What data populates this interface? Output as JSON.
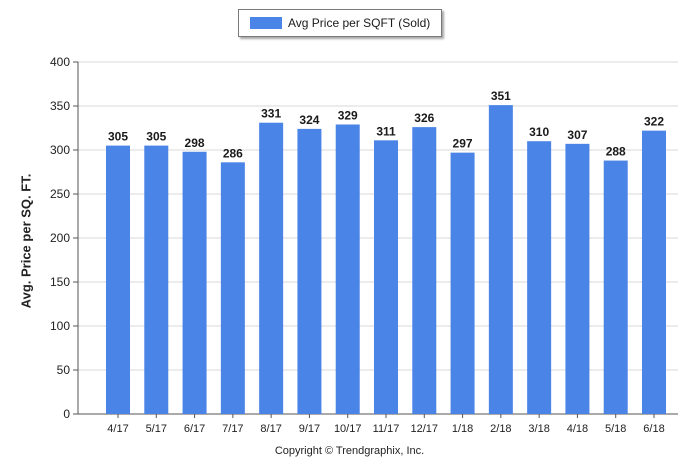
{
  "chart_data": {
    "type": "bar",
    "categories": [
      "4/17",
      "5/17",
      "6/17",
      "7/17",
      "8/17",
      "9/17",
      "10/17",
      "11/17",
      "12/17",
      "1/18",
      "2/18",
      "3/18",
      "4/18",
      "5/18",
      "6/18"
    ],
    "series": [
      {
        "name": "Avg Price per SQFT (Sold)",
        "values": [
          305,
          305,
          298,
          286,
          331,
          324,
          329,
          311,
          326,
          297,
          351,
          310,
          307,
          288,
          322
        ]
      }
    ],
    "data_labels": [
      "305",
      "305",
      "298",
      "286",
      "331",
      "324",
      "329",
      "311",
      "326",
      "297",
      "351",
      "310",
      "307",
      "288",
      "322"
    ],
    "title": "",
    "xlabel": "",
    "ylabel": "Avg. Price per SQ. FT.",
    "ylim": [
      0,
      400
    ],
    "yticks": [
      "0",
      "50",
      "100",
      "150",
      "200",
      "250",
      "300",
      "350",
      "400"
    ],
    "grid": true,
    "legend_position": "top-center",
    "bar_color": "#4a84e6"
  },
  "footer": "Copyright © Trendgraphix, Inc."
}
